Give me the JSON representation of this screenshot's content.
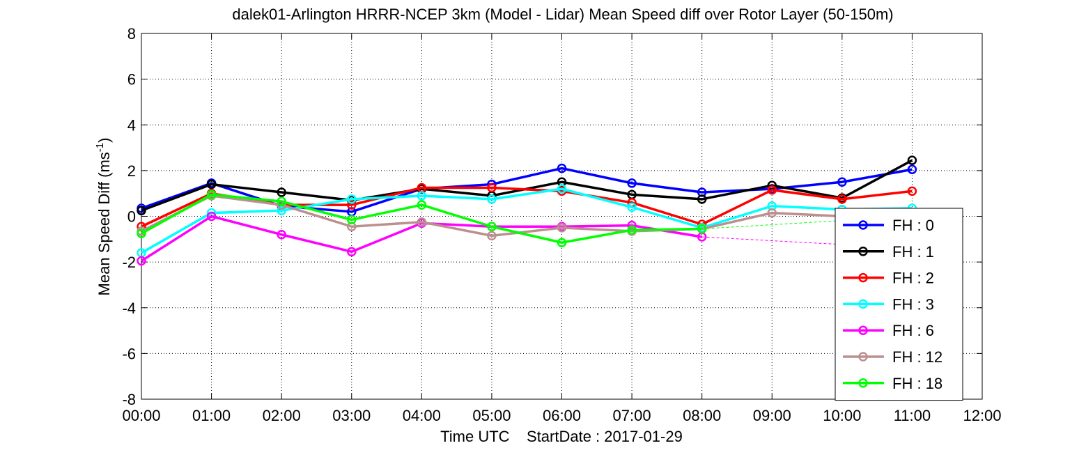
{
  "chart_data": {
    "type": "line",
    "title": "dalek01-Arlington HRRR-NCEP 3km (Model - Lidar) Mean Speed diff over Rotor Layer (50-150m)",
    "xlabel": "Time UTC    StartDate : 2017-01-29",
    "ylabel_main": "Mean Speed Diff (ms",
    "ylabel_sup": "-1",
    "ylabel_end": ")",
    "xlim": [
      0,
      12
    ],
    "ylim": [
      -8,
      8
    ],
    "x_ticks": [
      0,
      1,
      2,
      3,
      4,
      5,
      6,
      7,
      8,
      9,
      10,
      11,
      12
    ],
    "x_tick_labels": [
      "00:00",
      "01:00",
      "02:00",
      "03:00",
      "04:00",
      "05:00",
      "06:00",
      "07:00",
      "08:00",
      "09:00",
      "10:00",
      "11:00",
      "12:00"
    ],
    "y_ticks": [
      -8,
      -6,
      -4,
      -2,
      0,
      2,
      4,
      6,
      8
    ],
    "y_tick_labels": [
      "-8",
      "-6",
      "-4",
      "-2",
      "0",
      "2",
      "4",
      "6",
      "8"
    ],
    "grid": true,
    "legend_position": "bottom-right",
    "series": [
      {
        "name": "FH : 0",
        "color": "#0000ff",
        "x": [
          0,
          1,
          2,
          3,
          4,
          5,
          6,
          7,
          8,
          9,
          10,
          11
        ],
        "y": [
          0.35,
          1.45,
          0.45,
          0.2,
          1.2,
          1.4,
          2.1,
          1.45,
          1.05,
          1.2,
          1.5,
          2.05
        ]
      },
      {
        "name": "FH : 1",
        "color": "#000000",
        "x": [
          0,
          1,
          2,
          3,
          4,
          5,
          6,
          7,
          8,
          9,
          10,
          11
        ],
        "y": [
          0.25,
          1.4,
          1.05,
          0.7,
          1.2,
          0.9,
          1.5,
          0.95,
          0.75,
          1.35,
          0.8,
          2.45
        ]
      },
      {
        "name": "FH : 2",
        "color": "#ff0000",
        "x": [
          0,
          1,
          2,
          3,
          4,
          5,
          6,
          7,
          8,
          9,
          10,
          11
        ],
        "y": [
          -0.45,
          1.0,
          0.5,
          0.5,
          1.25,
          1.25,
          1.1,
          0.6,
          -0.35,
          1.15,
          0.75,
          1.1
        ]
      },
      {
        "name": "FH : 3",
        "color": "#00ffff",
        "x": [
          0,
          1,
          2,
          3,
          4,
          5,
          6,
          7,
          8,
          9,
          10,
          11
        ],
        "y": [
          -1.6,
          0.15,
          0.25,
          0.75,
          0.9,
          0.75,
          1.2,
          0.4,
          -0.5,
          0.45,
          0.3,
          0.35
        ]
      },
      {
        "name": "FH : 6",
        "color": "#ff00ff",
        "x": [
          0,
          1,
          2,
          3,
          4,
          5,
          6,
          7,
          8
        ],
        "y": [
          -1.95,
          0.0,
          -0.8,
          -1.55,
          -0.3,
          -0.45,
          -0.45,
          -0.4,
          -0.9
        ],
        "dashed_extension": {
          "x": [
            8,
            11
          ],
          "y": [
            -0.9,
            -1.4
          ]
        }
      },
      {
        "name": "FH : 12",
        "color": "#bc8f8f",
        "x": [
          0,
          1,
          2,
          3,
          4,
          5,
          6,
          7,
          8,
          9,
          10
        ],
        "y": [
          -0.65,
          0.9,
          0.5,
          -0.45,
          -0.25,
          -0.85,
          -0.5,
          -0.65,
          -0.55,
          0.15,
          0.0
        ]
      },
      {
        "name": "FH : 18",
        "color": "#00ff00",
        "x": [
          0,
          1,
          2,
          3,
          4,
          5,
          6,
          7,
          8
        ],
        "y": [
          -0.75,
          0.95,
          0.65,
          -0.15,
          0.5,
          -0.45,
          -1.15,
          -0.6,
          -0.55
        ],
        "dashed_extension": {
          "x": [
            8,
            11
          ],
          "y": [
            -0.55,
            0.0
          ]
        }
      }
    ]
  }
}
